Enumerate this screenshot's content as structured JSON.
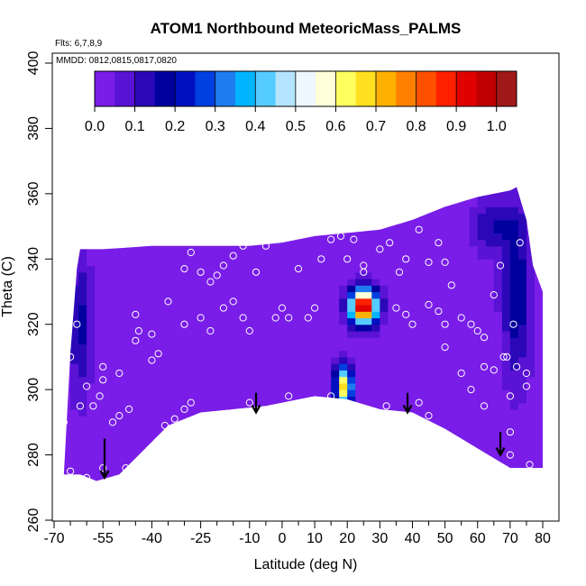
{
  "chart_data": {
    "type": "heatmap",
    "title": "ATOM1 Northbound MeteoricMass_PALMS",
    "annotations": [
      "Flts: 6,7,8,9",
      "MMDD: 0812,0815,0817,0820"
    ],
    "xlabel": "Latitude (deg N)",
    "ylabel": "Theta (C)",
    "xlim": [
      -70,
      80
    ],
    "ylim": [
      260,
      400
    ],
    "x_ticks": [
      -70,
      -55,
      -40,
      -25,
      -10,
      0,
      10,
      20,
      30,
      40,
      50,
      60,
      70,
      80
    ],
    "x_tick_labels": [
      "-70",
      "-55",
      "-40",
      "-25",
      "-10",
      "0",
      "10",
      "20",
      "30",
      "40",
      "50",
      "60",
      "70",
      "80"
    ],
    "x_minor_ticks": [
      -65,
      -60,
      -50,
      -45,
      -35,
      -30,
      -20,
      -15,
      -5,
      5,
      15,
      25,
      35,
      45,
      55,
      65,
      75
    ],
    "y_ticks": [
      260,
      280,
      300,
      320,
      340,
      360,
      380,
      400
    ],
    "y_tick_labels": [
      "260",
      "280",
      "300",
      "320",
      "340",
      "360",
      "380",
      "400"
    ],
    "colorbar": {
      "ticks": [
        0.0,
        0.1,
        0.2,
        0.3,
        0.4,
        0.5,
        0.6,
        0.7,
        0.8,
        0.9,
        1.0
      ],
      "tick_labels": [
        "0.0",
        "0.1",
        "0.2",
        "0.3",
        "0.4",
        "0.5",
        "0.6",
        "0.7",
        "0.8",
        "0.9",
        "1.0"
      ],
      "range": [
        0,
        1.05
      ],
      "colors": [
        "#7a1de8",
        "#5a12d4",
        "#2a08b8",
        "#00009e",
        "#0010c0",
        "#0040e0",
        "#1e7cf0",
        "#00b4ff",
        "#55ccff",
        "#b4e4ff",
        "#eef6ff",
        "#ffffd8",
        "#ffff60",
        "#ffe020",
        "#ffb000",
        "#ff8000",
        "#ff5000",
        "#ff2000",
        "#e00000",
        "#c00000",
        "#a01818"
      ]
    },
    "background_value": 0.03,
    "domain_top": [
      [
        -65,
        311
      ],
      [
        -63,
        337
      ],
      [
        -62,
        343
      ],
      [
        -55,
        343
      ],
      [
        -40,
        344
      ],
      [
        -20,
        344
      ],
      [
        -10,
        344
      ],
      [
        0,
        345
      ],
      [
        10,
        347
      ],
      [
        20,
        348
      ],
      [
        30,
        349
      ],
      [
        40,
        352
      ],
      [
        50,
        356
      ],
      [
        60,
        359
      ],
      [
        70,
        361
      ],
      [
        72,
        362
      ],
      [
        75,
        352
      ],
      [
        77,
        338
      ],
      [
        80,
        330
      ],
      [
        80,
        305
      ]
    ],
    "domain_bottom": [
      [
        -67,
        274
      ],
      [
        -62,
        274
      ],
      [
        -57,
        272
      ],
      [
        -50,
        274
      ],
      [
        -45,
        279
      ],
      [
        -35,
        289
      ],
      [
        -25,
        293
      ],
      [
        -15,
        294
      ],
      [
        -5,
        295
      ],
      [
        10,
        298
      ],
      [
        20,
        297
      ],
      [
        30,
        294
      ],
      [
        40,
        293
      ],
      [
        50,
        288
      ],
      [
        60,
        282
      ],
      [
        70,
        276
      ],
      [
        80,
        276
      ]
    ],
    "features": [
      {
        "name": "high-mass-core",
        "lat": 25,
        "theta": 325.5,
        "peak": 1.0,
        "rlat": 4,
        "rtheta": 5
      },
      {
        "name": "plume",
        "lat": 19,
        "theta": 301,
        "peak": 0.65,
        "rlat": 2.5,
        "rtheta": 6
      },
      {
        "name": "left-edge-band",
        "lat": -62,
        "theta": 320,
        "peak": 0.14,
        "rlat": 3,
        "rtheta": 20
      },
      {
        "name": "right-edge-band",
        "lat": 72,
        "theta": 330,
        "peak": 0.17,
        "rlat": 4,
        "rtheta": 25
      },
      {
        "name": "upper-right-band",
        "lat": 65,
        "theta": 350,
        "peak": 0.12,
        "rlat": 6,
        "rtheta": 8
      }
    ],
    "points": [
      [
        -65,
        275
      ],
      [
        -60,
        273
      ],
      [
        -55,
        276
      ],
      [
        -48,
        276
      ],
      [
        -67,
        290
      ],
      [
        -67,
        296
      ],
      [
        -62,
        295
      ],
      [
        -58,
        295
      ],
      [
        -56,
        298
      ],
      [
        -52,
        290
      ],
      [
        -50,
        292
      ],
      [
        -47,
        294
      ],
      [
        -60,
        301
      ],
      [
        -55,
        303
      ],
      [
        -55,
        307
      ],
      [
        -50,
        305
      ],
      [
        -45,
        315
      ],
      [
        -44,
        318
      ],
      [
        -40,
        317
      ],
      [
        -40,
        309
      ],
      [
        -38,
        311
      ],
      [
        -36,
        289
      ],
      [
        -33,
        291
      ],
      [
        -30,
        294
      ],
      [
        -28,
        296
      ],
      [
        -30,
        320
      ],
      [
        -25,
        322
      ],
      [
        -22,
        318
      ],
      [
        -18,
        325
      ],
      [
        -15,
        327
      ],
      [
        -12,
        322
      ],
      [
        -10,
        318
      ],
      [
        -35,
        327
      ],
      [
        -30,
        337
      ],
      [
        -28,
        342
      ],
      [
        -25,
        336
      ],
      [
        -22,
        333
      ],
      [
        -20,
        335
      ],
      [
        -18,
        338
      ],
      [
        -15,
        341
      ],
      [
        -12,
        344
      ],
      [
        -10,
        346
      ],
      [
        -8,
        336
      ],
      [
        -5,
        344
      ],
      [
        -2,
        322
      ],
      [
        0,
        325
      ],
      [
        2,
        322
      ],
      [
        5,
        337
      ],
      [
        8,
        322
      ],
      [
        10,
        325
      ],
      [
        12,
        340
      ],
      [
        15,
        346
      ],
      [
        18,
        347
      ],
      [
        20,
        340
      ],
      [
        22,
        346
      ],
      [
        25,
        338
      ],
      [
        30,
        343
      ],
      [
        33,
        345
      ],
      [
        36,
        336
      ],
      [
        38,
        340
      ],
      [
        42,
        349
      ],
      [
        45,
        339
      ],
      [
        48,
        345
      ],
      [
        50,
        339
      ],
      [
        52,
        332
      ],
      [
        35,
        325
      ],
      [
        38,
        323
      ],
      [
        40,
        320
      ],
      [
        45,
        326
      ],
      [
        48,
        324
      ],
      [
        50,
        320
      ],
      [
        55,
        322
      ],
      [
        58,
        320
      ],
      [
        60,
        318
      ],
      [
        62,
        316
      ],
      [
        50,
        313
      ],
      [
        62,
        307
      ],
      [
        65,
        306
      ],
      [
        68,
        310
      ],
      [
        72,
        307
      ],
      [
        75,
        305
      ],
      [
        75,
        301
      ],
      [
        70,
        287
      ],
      [
        70,
        280
      ],
      [
        76,
        277
      ],
      [
        25,
        336
      ],
      [
        -45,
        323
      ],
      [
        -63,
        320
      ],
      [
        -10,
        296
      ],
      [
        2,
        298
      ],
      [
        15,
        298
      ],
      [
        32,
        295
      ],
      [
        42,
        296
      ],
      [
        45,
        292
      ],
      [
        58,
        300
      ],
      [
        62,
        295
      ],
      [
        -65,
        310
      ],
      [
        70,
        298
      ],
      [
        55,
        305
      ],
      [
        65,
        329
      ],
      [
        69,
        310
      ],
      [
        73,
        345
      ],
      [
        67,
        338
      ],
      [
        71,
        320
      ]
    ],
    "arrows": [
      {
        "lat": -54.5,
        "theta_top": 285,
        "theta_tip": 273
      },
      {
        "lat": -8,
        "theta_top": 299,
        "theta_tip": 293
      },
      {
        "lat": 38.5,
        "theta_top": 299,
        "theta_tip": 293
      },
      {
        "lat": 67,
        "theta_top": 287,
        "theta_tip": 280
      }
    ]
  }
}
